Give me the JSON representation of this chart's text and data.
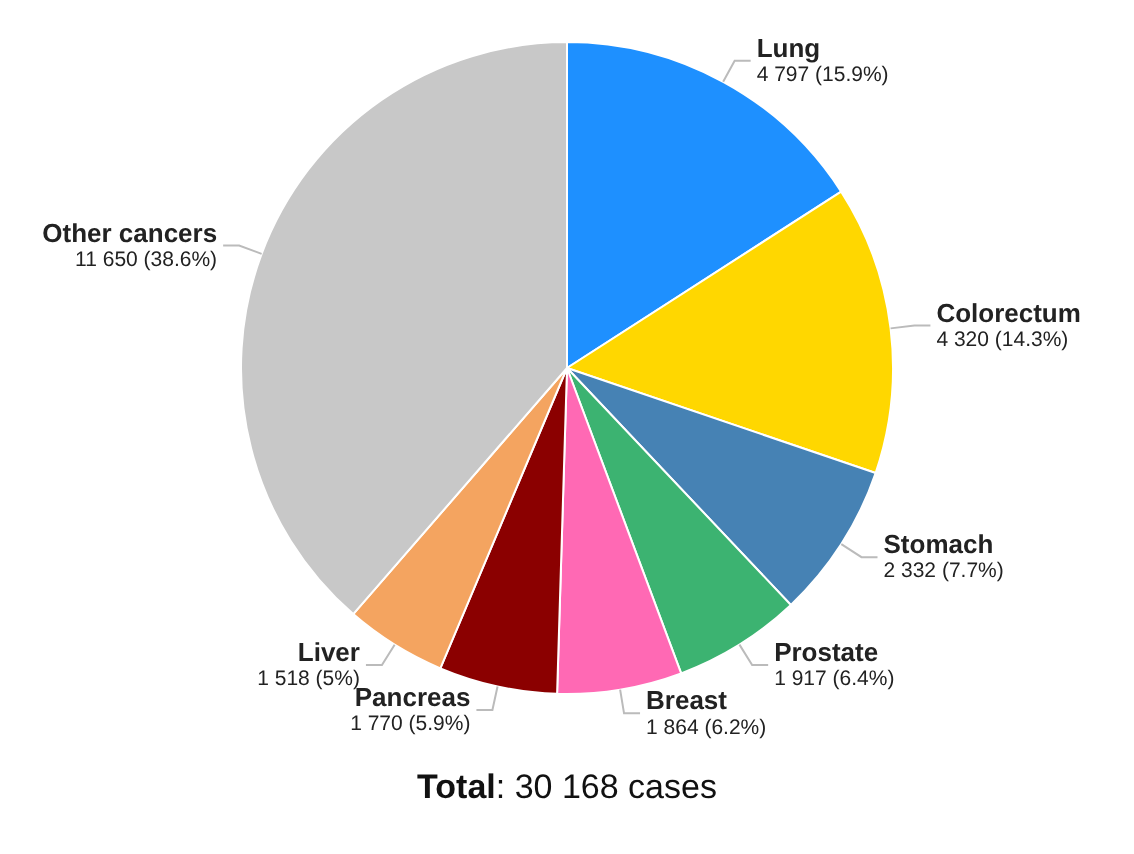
{
  "chart_data": {
    "type": "pie",
    "categories": [
      "Lung",
      "Colorectum",
      "Stomach",
      "Prostate",
      "Breast",
      "Pancreas",
      "Liver",
      "Other cancers"
    ],
    "values": [
      4797,
      4320,
      2332,
      1917,
      1864,
      1770,
      1518,
      11650
    ],
    "value_labels": [
      "4 797 (15.9%)",
      "4 320 (14.3%)",
      "2 332 (7.7%)",
      "1 917 (6.4%)",
      "1 864 (6.2%)",
      "1 770 (5.9%)",
      "1 518 (5%)",
      "11 650 (38.6%)"
    ],
    "colors": [
      "#1e90ff",
      "#ffd700",
      "#4682b4",
      "#3cb371",
      "#ff69b4",
      "#8b0000",
      "#f4a460",
      "#c8c8c8"
    ],
    "annotations": [
      "Total: 30 168 cases"
    ],
    "legend": false
  }
}
